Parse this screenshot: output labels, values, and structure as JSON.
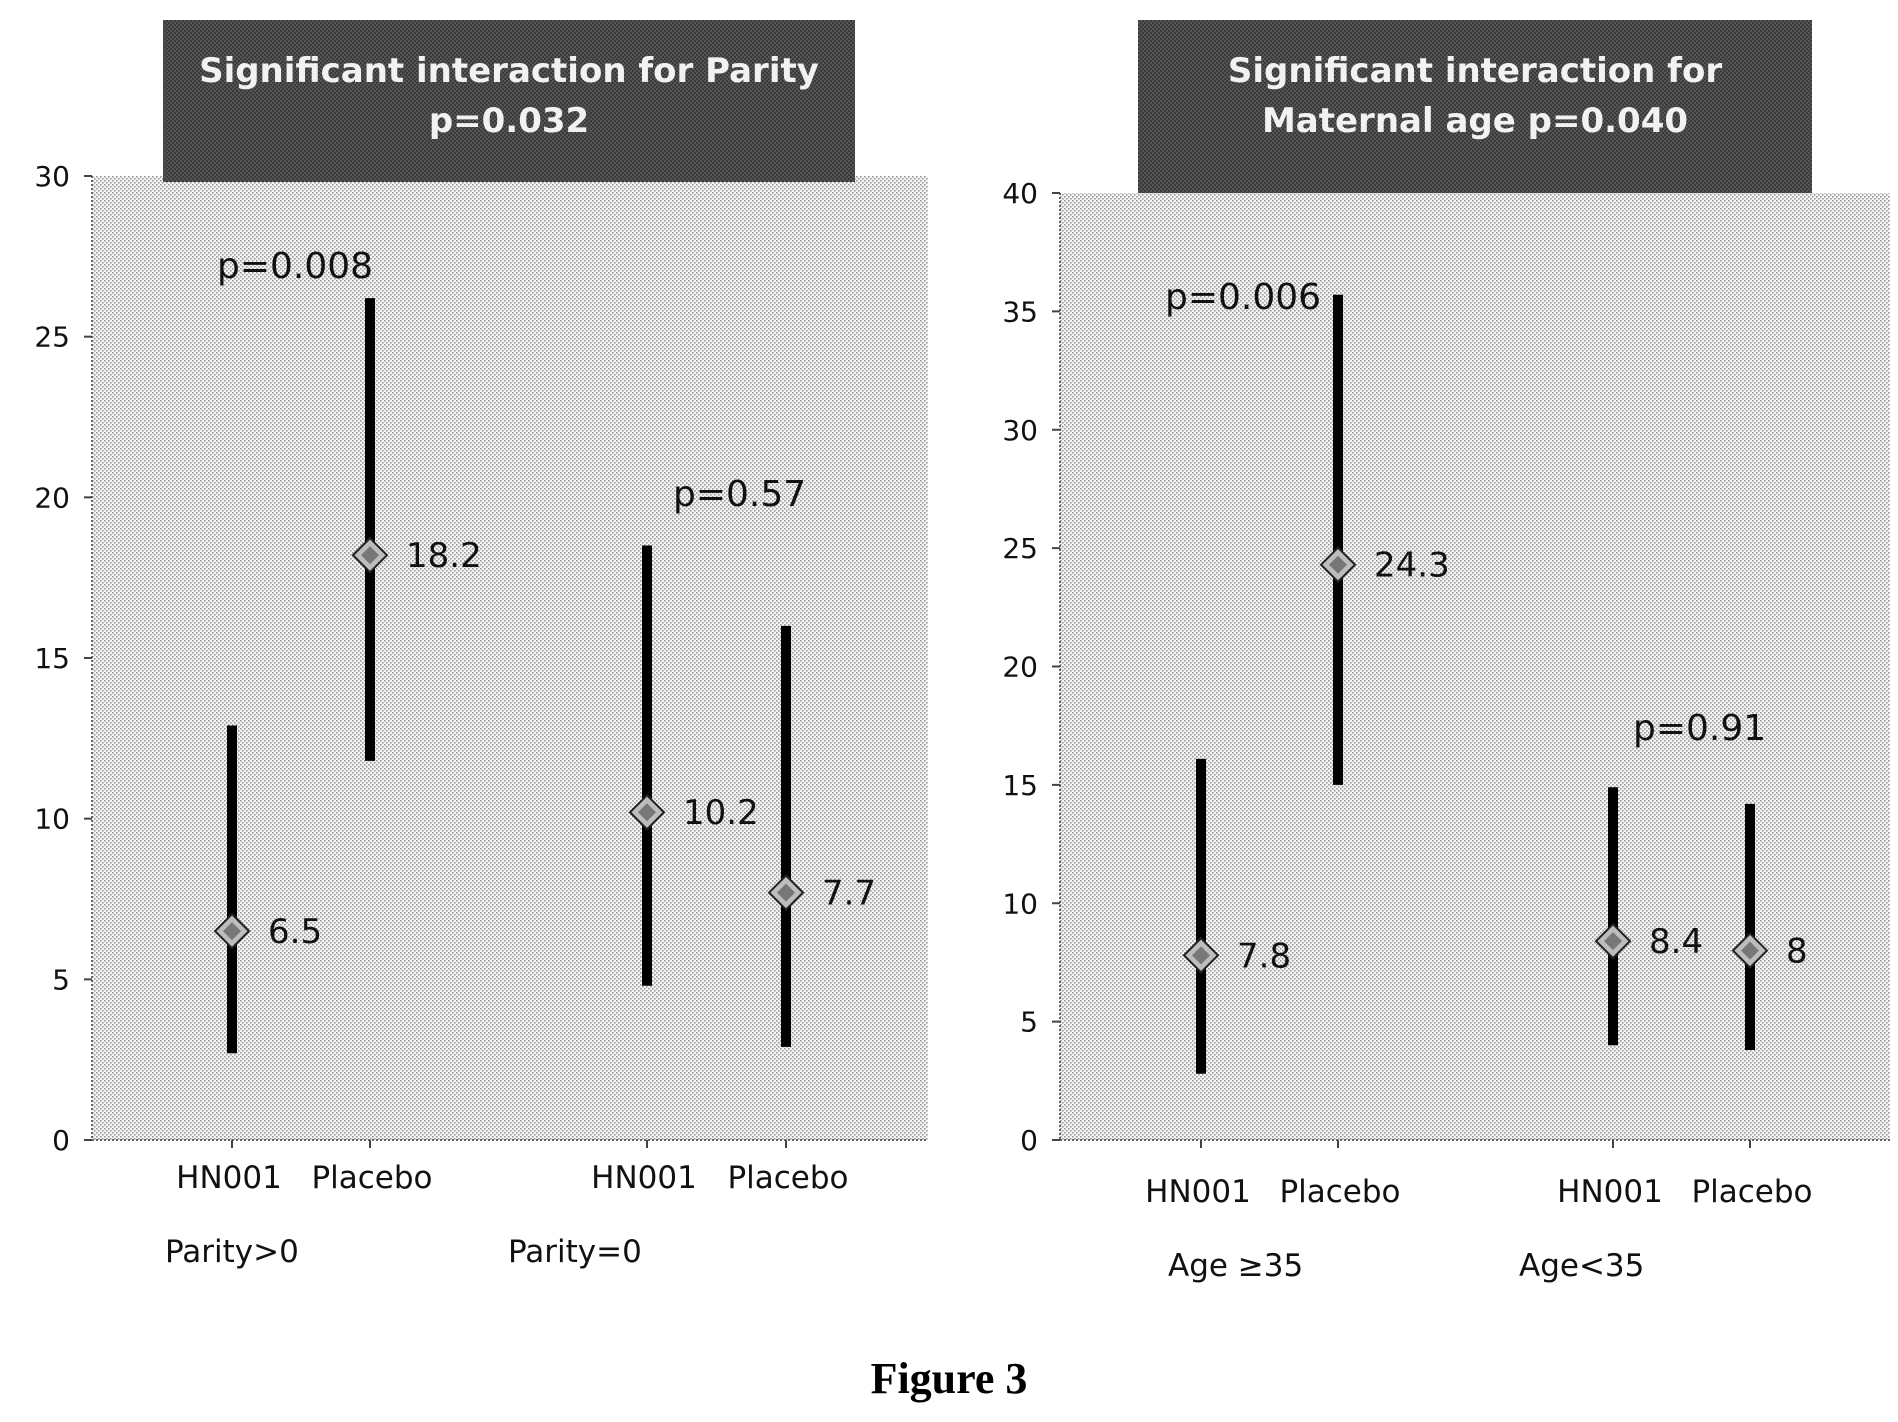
{
  "caption": "Figure 3",
  "chart_data": [
    {
      "type": "error-bar",
      "title_lines": [
        "Significant interaction for Parity",
        "p=0.032"
      ],
      "ylim": [
        0,
        30
      ],
      "yticks": [
        0,
        5,
        10,
        15,
        20,
        25,
        30
      ],
      "points": [
        {
          "label": "HN001",
          "group": "Parity>0",
          "value": 6.5,
          "lower": 2.7,
          "upper": 12.9,
          "value_label": "6.5"
        },
        {
          "label": "Placebo",
          "group": "Parity>0",
          "value": 18.2,
          "lower": 11.8,
          "upper": 26.2,
          "value_label": "18.2"
        },
        {
          "label": "HN001",
          "group": "Parity=0",
          "value": 10.2,
          "lower": 4.8,
          "upper": 18.5,
          "value_label": "10.2"
        },
        {
          "label": "Placebo",
          "group": "Parity=0",
          "value": 7.7,
          "lower": 2.9,
          "upper": 16.0,
          "value_label": "7.7"
        }
      ],
      "groups": [
        {
          "name": "Parity>0",
          "points": [
            0,
            1
          ]
        },
        {
          "name": "Parity=0",
          "points": [
            2,
            3
          ]
        }
      ],
      "annotations": [
        {
          "text": "p=0.008",
          "at_y": 27.2,
          "near_point": 0
        },
        {
          "text": "p=0.57",
          "at_y": 20.1,
          "near_point": 2
        }
      ],
      "grid": false,
      "legend": "none"
    },
    {
      "type": "error-bar",
      "title_lines": [
        "Significant interaction for",
        "Maternal age p=0.040"
      ],
      "ylim": [
        0,
        40
      ],
      "yticks": [
        0,
        5,
        10,
        15,
        20,
        25,
        30,
        35,
        40
      ],
      "points": [
        {
          "label": "HN001",
          "group": "Age ≥35",
          "value": 7.8,
          "lower": 2.8,
          "upper": 16.1,
          "value_label": "7.8"
        },
        {
          "label": "Placebo",
          "group": "Age ≥35",
          "value": 24.3,
          "lower": 15.0,
          "upper": 35.7,
          "value_label": "24.3"
        },
        {
          "label": "HN001",
          "group": "Age<35",
          "value": 8.4,
          "lower": 4.0,
          "upper": 14.9,
          "value_label": "8.4"
        },
        {
          "label": "Placebo",
          "group": "Age<35",
          "value": 8.0,
          "lower": 3.8,
          "upper": 14.2,
          "value_label": "8"
        }
      ],
      "groups": [
        {
          "name": "Age ≥35",
          "points": [
            0,
            1
          ]
        },
        {
          "name": "Age<35",
          "points": [
            2,
            3
          ]
        }
      ],
      "annotations": [
        {
          "text": "p=0.006",
          "at_y": 35.6,
          "near_point": 0
        },
        {
          "text": "p=0.91",
          "at_y": 17.4,
          "near_point": 2
        }
      ],
      "grid": false,
      "legend": "none"
    }
  ]
}
